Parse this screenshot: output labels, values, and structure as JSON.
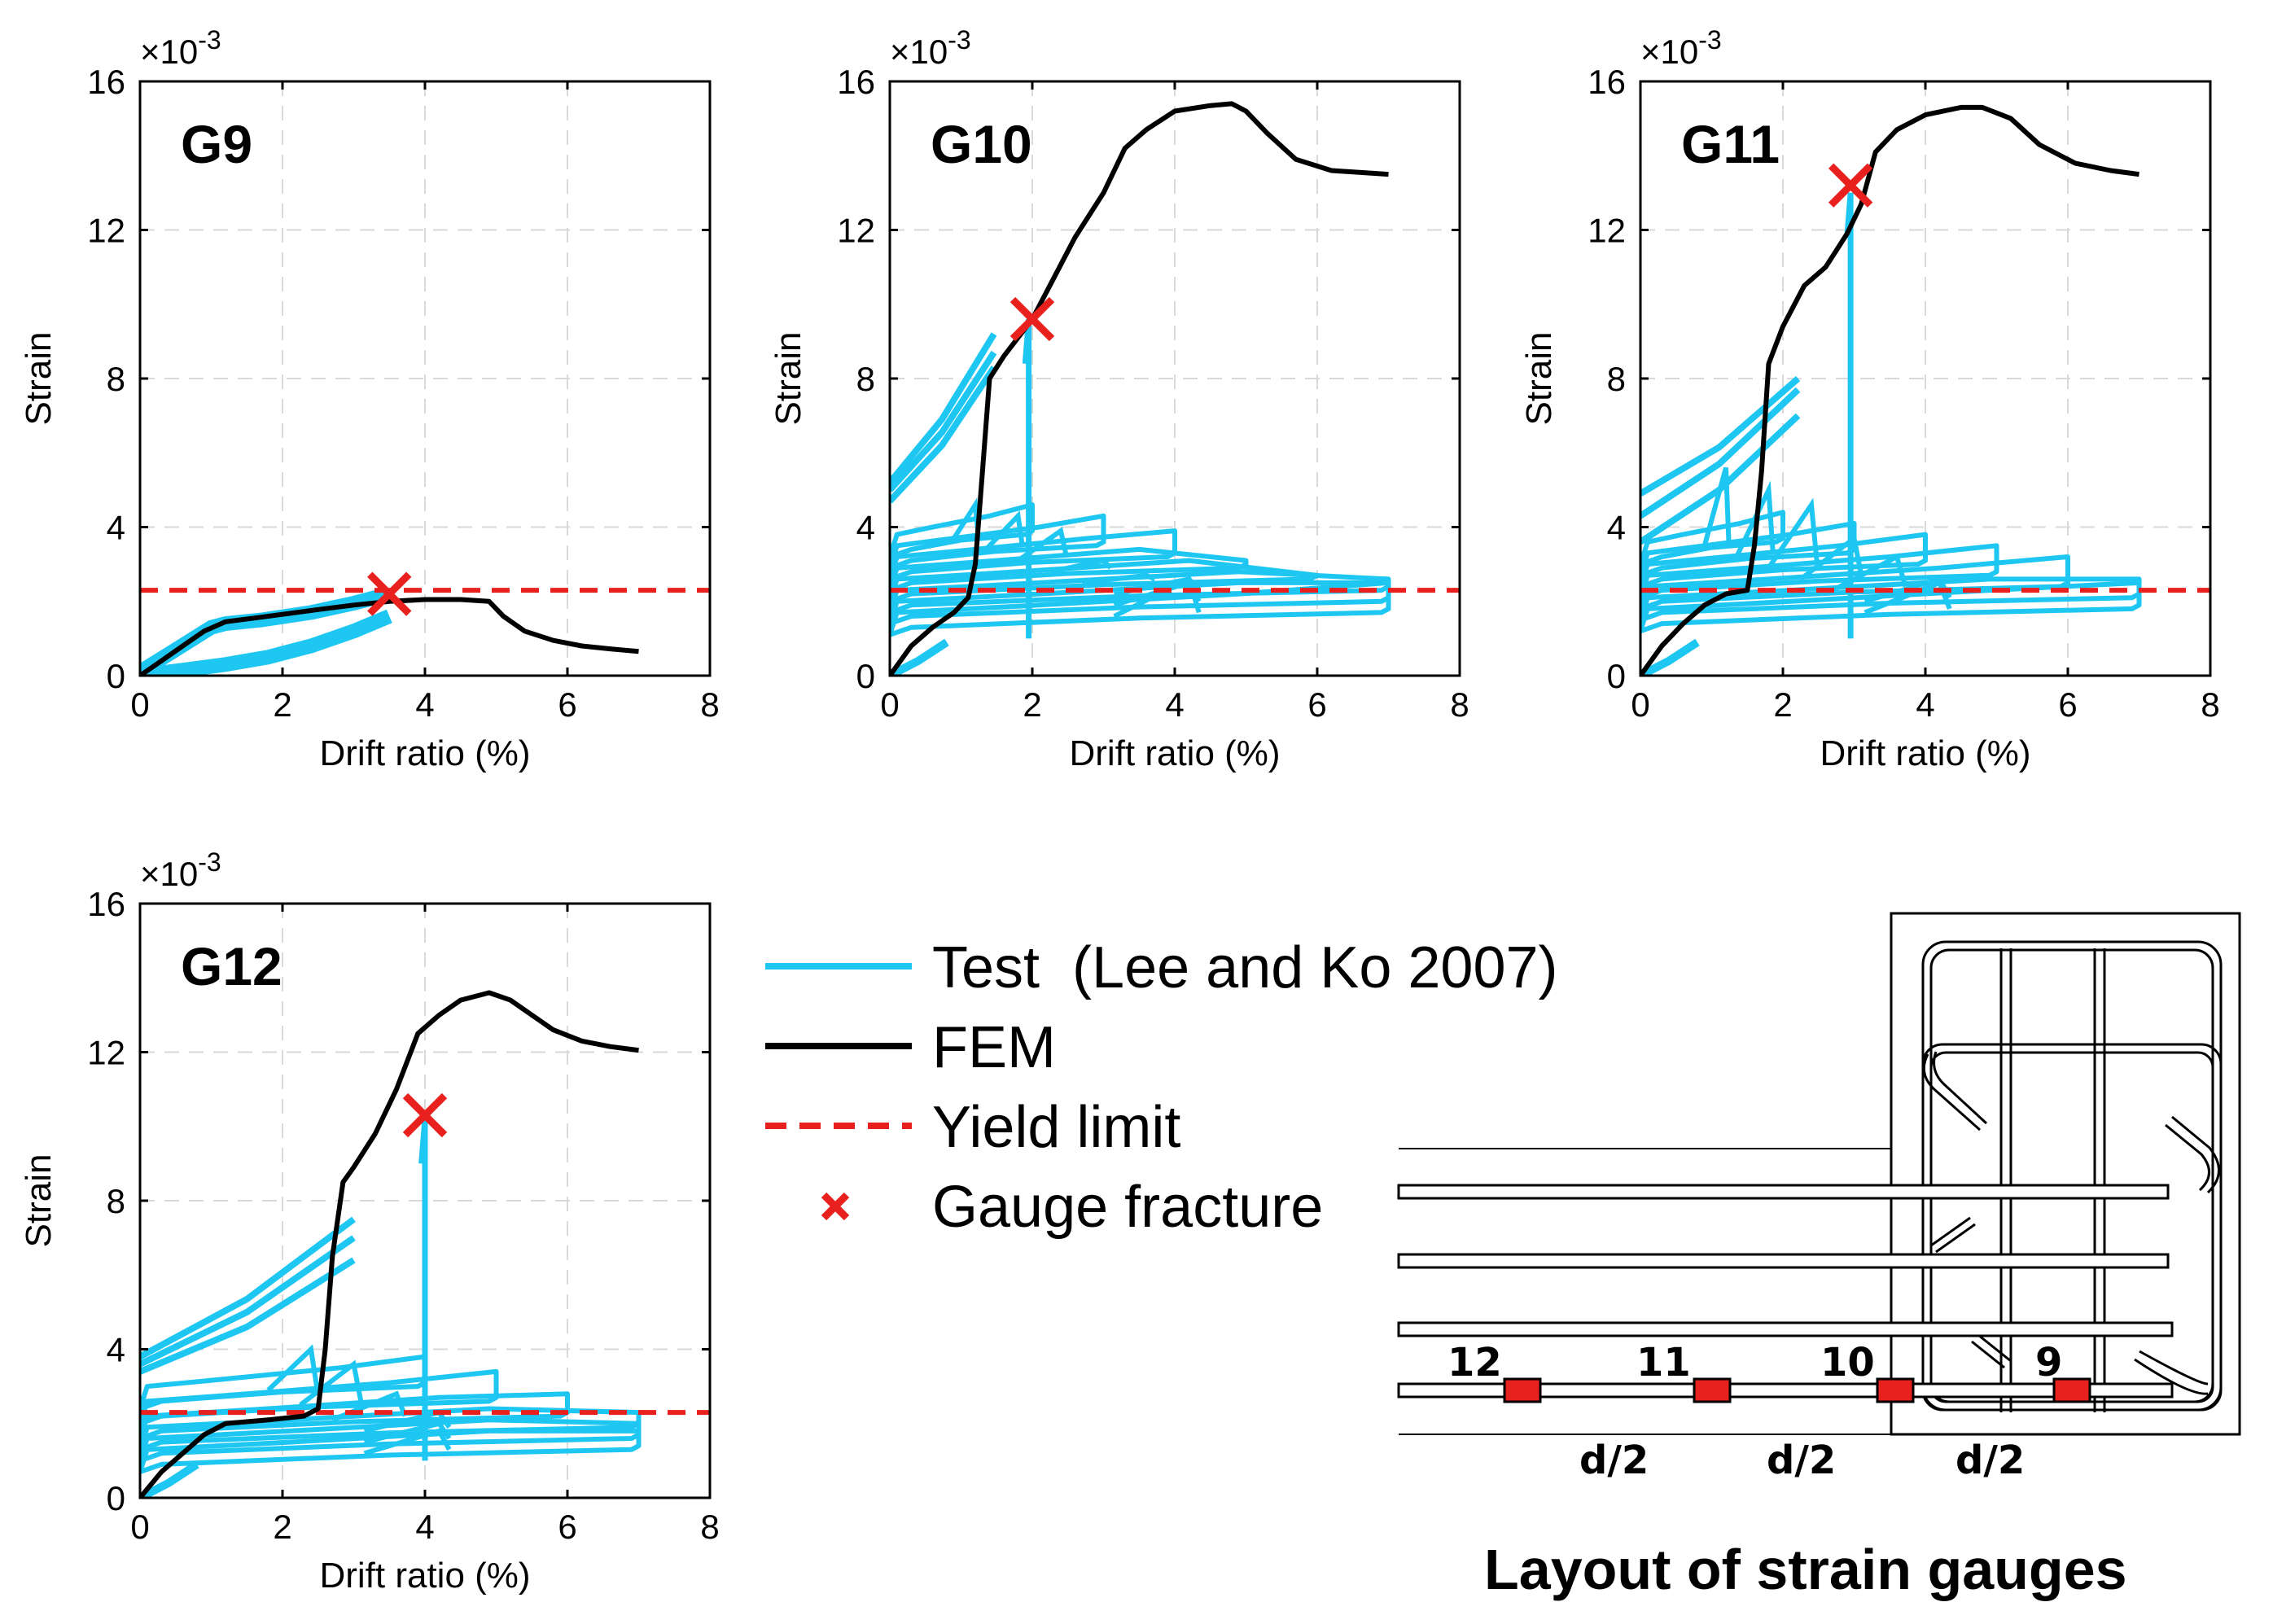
{
  "chart_data": [
    {
      "type": "line",
      "title": "G9",
      "xlabel": "Drift ratio (%)",
      "ylabel": "Strain",
      "y_multiplier": "×10",
      "y_exponent": "-3",
      "xlim": [
        0,
        8
      ],
      "ylim": [
        0,
        16
      ],
      "xticks": [
        "0",
        "2",
        "4",
        "6",
        "8"
      ],
      "yticks": [
        "0",
        "4",
        "8",
        "12",
        "16"
      ],
      "yield_limit": 2.3,
      "fracture": {
        "x": 3.5,
        "y": 2.2
      },
      "fem": {
        "x": [
          0,
          0.3,
          0.6,
          0.9,
          1.2,
          1.6,
          2.0,
          2.5,
          3.0,
          3.5,
          4.0,
          4.5,
          4.9,
          5.1,
          5.4,
          5.8,
          6.2,
          6.6,
          7.0
        ],
        "y": [
          0,
          0.4,
          0.8,
          1.2,
          1.45,
          1.55,
          1.65,
          1.78,
          1.9,
          2.0,
          2.05,
          2.05,
          2.0,
          1.6,
          1.2,
          0.95,
          0.8,
          0.72,
          0.65
        ]
      },
      "test": {
        "upper_x": [
          0,
          0.5,
          1.0,
          1.2,
          1.7,
          2.4,
          3.0,
          3.5
        ],
        "upper_y": [
          0.1,
          0.7,
          1.3,
          1.4,
          1.5,
          1.7,
          1.95,
          2.2
        ],
        "lower_x": [
          0,
          0.6,
          1.2,
          1.8,
          2.4,
          3.0,
          3.5
        ],
        "lower_y": [
          0,
          0.15,
          0.3,
          0.5,
          0.8,
          1.2,
          1.6
        ]
      }
    },
    {
      "type": "line",
      "title": "G10",
      "xlabel": "Drift ratio (%)",
      "ylabel": "Strain",
      "y_multiplier": "×10",
      "y_exponent": "-3",
      "xlim": [
        0,
        8
      ],
      "ylim": [
        0,
        16
      ],
      "xticks": [
        "0",
        "2",
        "4",
        "6",
        "8"
      ],
      "yticks": [
        "0",
        "4",
        "8",
        "12",
        "16"
      ],
      "yield_limit": 2.3,
      "fracture": {
        "x": 2.0,
        "y": 9.6
      },
      "fem": {
        "x": [
          0,
          0.3,
          0.6,
          0.9,
          1.1,
          1.2,
          1.3,
          1.4,
          1.6,
          1.8,
          2.0,
          2.3,
          2.6,
          3.0,
          3.3,
          3.6,
          4.0,
          4.5,
          4.8,
          5.0,
          5.3,
          5.7,
          6.2,
          7.0
        ],
        "y": [
          0,
          0.8,
          1.3,
          1.7,
          2.1,
          3.0,
          5.5,
          8.0,
          8.6,
          9.1,
          9.6,
          10.7,
          11.8,
          13.0,
          14.2,
          14.7,
          15.2,
          15.35,
          15.4,
          15.2,
          14.6,
          13.9,
          13.6,
          13.5
        ]
      },
      "test": {
        "loops_x_end": [
          7.0,
          7.0,
          7.0,
          6.0,
          5.0,
          4.0,
          3.0,
          2.0
        ],
        "loop_base_y": [
          1.3,
          1.6,
          1.9,
          2.2,
          2.5,
          2.8,
          3.1,
          3.4
        ],
        "loop_rise_y": [
          2.6,
          2.5,
          2.6,
          2.7,
          3.1,
          3.9,
          4.3,
          4.6
        ],
        "upper_lines_y0": [
          4.7,
          5.0,
          5.2
        ],
        "upper_lines_y1": [
          8.3,
          8.7,
          9.2
        ],
        "spike_x": 1.95,
        "spike_y": 9.6
      }
    },
    {
      "type": "line",
      "title": "G11",
      "xlabel": "Drift ratio (%)",
      "ylabel": "Strain",
      "y_multiplier": "×10",
      "y_exponent": "-3",
      "xlim": [
        0,
        8
      ],
      "ylim": [
        0,
        16
      ],
      "xticks": [
        "0",
        "2",
        "4",
        "6",
        "8"
      ],
      "yticks": [
        "0",
        "4",
        "8",
        "12",
        "16"
      ],
      "yield_limit": 2.3,
      "fracture": {
        "x": 2.95,
        "y": 13.2
      },
      "fem": {
        "x": [
          0,
          0.3,
          0.6,
          0.9,
          1.2,
          1.5,
          1.6,
          1.7,
          1.8,
          2.0,
          2.3,
          2.6,
          2.9,
          3.1,
          3.3,
          3.6,
          4.0,
          4.5,
          4.8,
          5.2,
          5.6,
          6.1,
          6.6,
          7.0
        ],
        "y": [
          0,
          0.8,
          1.4,
          1.9,
          2.2,
          2.3,
          3.5,
          5.5,
          8.4,
          9.4,
          10.5,
          11.0,
          11.9,
          12.7,
          14.1,
          14.7,
          15.1,
          15.3,
          15.3,
          15.0,
          14.3,
          13.8,
          13.6,
          13.5
        ]
      },
      "test": {
        "loops_x_end": [
          7.0,
          7.0,
          6.0,
          5.0,
          4.0,
          3.0,
          2.0
        ],
        "loop_base_y": [
          1.4,
          1.7,
          2.0,
          2.3,
          2.6,
          2.9,
          3.2
        ],
        "loop_rise_y": [
          2.5,
          2.6,
          3.2,
          3.7,
          4.6,
          5.0,
          5.6
        ],
        "upper_lines_y0": [
          3.6,
          4.3,
          4.9
        ],
        "upper_lines_y1": [
          7.0,
          7.7,
          8.0
        ],
        "spike_x": 2.95,
        "spike_y": 13.0
      }
    },
    {
      "type": "line",
      "title": "G12",
      "xlabel": "Drift ratio (%)",
      "ylabel": "Strain",
      "y_multiplier": "×10",
      "y_exponent": "-3",
      "xlim": [
        0,
        8
      ],
      "ylim": [
        0,
        16
      ],
      "xticks": [
        "0",
        "2",
        "4",
        "6",
        "8"
      ],
      "yticks": [
        "0",
        "4",
        "8",
        "12",
        "16"
      ],
      "yield_limit": 2.3,
      "fracture": {
        "x": 4.0,
        "y": 10.3
      },
      "fem": {
        "x": [
          0,
          0.3,
          0.6,
          0.9,
          1.2,
          1.8,
          2.3,
          2.5,
          2.6,
          2.7,
          2.85,
          3.0,
          3.3,
          3.6,
          3.9,
          4.2,
          4.5,
          4.9,
          5.2,
          5.5,
          5.8,
          6.2,
          6.6,
          7.0
        ],
        "y": [
          0,
          0.7,
          1.2,
          1.7,
          2.0,
          2.1,
          2.2,
          2.4,
          4.0,
          6.5,
          8.5,
          8.9,
          9.8,
          11.0,
          12.5,
          13.0,
          13.4,
          13.6,
          13.4,
          13.0,
          12.6,
          12.3,
          12.15,
          12.05
        ]
      },
      "test": {
        "loops_x_end": [
          7.0,
          7.0,
          7.0,
          6.0,
          5.0,
          4.0
        ],
        "loop_base_y": [
          0.9,
          1.2,
          1.5,
          1.8,
          2.2,
          2.6
        ],
        "loop_rise_y": [
          1.8,
          2.0,
          2.3,
          2.8,
          3.6,
          4.0
        ],
        "upper_lines_y0": [
          3.4,
          3.6,
          3.8
        ],
        "upper_lines_y1": [
          6.4,
          7.0,
          7.5
        ],
        "spike_x": 4.0,
        "spike_y": 10.2
      }
    }
  ],
  "legend": {
    "test_label": "Test  (Lee and Ko 2007)",
    "fem_label": "FEM",
    "yield_label": "Yield limit",
    "fracture_label": "Gauge fracture"
  },
  "colors": {
    "test": "#1ec6f2",
    "fem": "#000000",
    "yield": "#e8211f",
    "fracture": "#e8211f",
    "gauge": "#e8211f",
    "grid": "#d9d9d9"
  },
  "layout_diagram": {
    "title": "Layout of strain gauges",
    "gauge_labels": [
      "12",
      "11",
      "10",
      "9"
    ],
    "spacing_labels": [
      "d/2",
      "d/2",
      "d/2"
    ]
  }
}
